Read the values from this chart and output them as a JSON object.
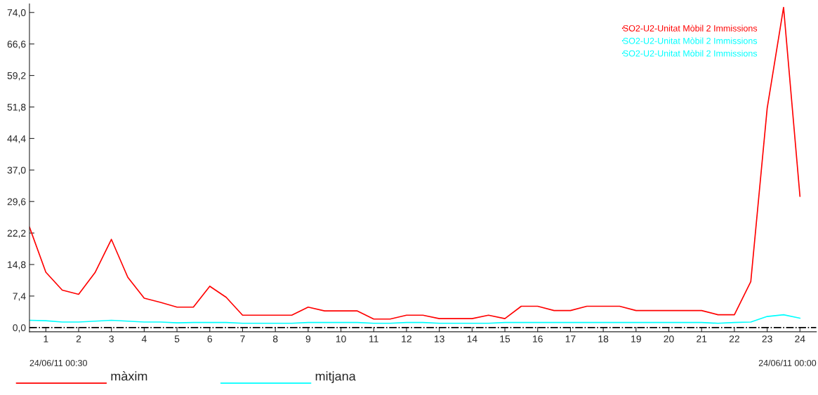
{
  "chart_data": {
    "type": "line",
    "x": [
      0.5,
      1,
      1.5,
      2,
      2.5,
      3,
      3.5,
      4,
      4.5,
      5,
      5.5,
      6,
      6.5,
      7,
      7.5,
      8,
      8.5,
      9,
      9.5,
      10,
      10.5,
      11,
      11.5,
      12,
      12.5,
      13,
      13.5,
      14,
      14.5,
      15,
      15.5,
      16,
      16.5,
      17,
      17.5,
      18,
      18.5,
      19,
      19.5,
      20,
      20.5,
      21,
      21.5,
      22,
      22.5,
      23,
      23.5,
      24
    ],
    "series": [
      {
        "name": "SO2-U2-Unitat Mòbil 2 Immissions",
        "color": "#ff0000",
        "values": [
          23.6,
          13.0,
          8.8,
          7.8,
          12.9,
          20.7,
          11.8,
          6.9,
          5.9,
          4.8,
          4.8,
          9.7,
          7.1,
          2.9,
          2.9,
          2.9,
          2.9,
          4.8,
          3.9,
          3.9,
          3.9,
          2.0,
          2.0,
          2.9,
          2.9,
          2.1,
          2.1,
          2.1,
          2.9,
          2.1,
          5.0,
          5.0,
          4.0,
          4.0,
          5.0,
          5.0,
          5.0,
          4.0,
          4.0,
          4.0,
          4.0,
          4.0,
          3.0,
          3.0,
          10.8,
          51.5,
          75.2,
          30.8
        ]
      },
      {
        "name": "SO2-U2-Unitat Mòbil 2 Immissions",
        "color": "#00ffff",
        "values": [
          1.7,
          1.6,
          1.3,
          1.3,
          1.5,
          1.7,
          1.5,
          1.3,
          1.3,
          1.1,
          1.2,
          1.2,
          1.2,
          1.0,
          1.0,
          1.0,
          1.0,
          1.2,
          1.2,
          1.2,
          1.2,
          1.0,
          1.0,
          1.2,
          1.2,
          1.0,
          1.0,
          1.0,
          1.0,
          1.2,
          1.2,
          1.2,
          1.2,
          1.2,
          1.2,
          1.2,
          1.2,
          1.2,
          1.2,
          1.2,
          1.2,
          1.2,
          1.0,
          1.2,
          1.3,
          2.6,
          3.0,
          2.2
        ]
      },
      {
        "name": "SO2-U2-Unitat Mòbil 2 Immissions",
        "color": "#00ffff",
        "values": [
          null,
          null,
          null,
          null,
          null,
          null,
          null,
          null,
          null,
          null,
          null,
          null,
          null,
          null,
          null,
          null,
          null,
          null,
          null,
          null,
          null,
          null,
          null,
          null,
          null,
          null,
          null,
          null,
          null,
          null,
          null,
          null,
          null,
          null,
          null,
          null,
          null,
          null,
          null,
          null,
          null,
          null,
          null,
          null,
          null,
          null,
          null,
          null
        ]
      }
    ],
    "xlim": [
      0.5,
      24.5
    ],
    "xticks": [
      1,
      2,
      3,
      4,
      5,
      6,
      7,
      8,
      9,
      10,
      11,
      12,
      13,
      14,
      15,
      16,
      17,
      18,
      19,
      20,
      21,
      22,
      23,
      24
    ],
    "ylim": [
      -1.0,
      76.0
    ],
    "yticks": [
      {
        "value": 0.0,
        "label": "0,0"
      },
      {
        "value": 7.4,
        "label": "7,4"
      },
      {
        "value": 14.8,
        "label": "14,8"
      },
      {
        "value": 22.2,
        "label": "22,2"
      },
      {
        "value": 29.6,
        "label": "29,6"
      },
      {
        "value": 37.0,
        "label": "37,0"
      },
      {
        "value": 44.4,
        "label": "44,4"
      },
      {
        "value": 51.8,
        "label": "51,8"
      },
      {
        "value": 59.2,
        "label": "59,2"
      },
      {
        "value": 66.6,
        "label": "66,6"
      },
      {
        "value": 74.0,
        "label": "74,0"
      }
    ],
    "ref_lines": [
      {
        "axis": "y",
        "value": 0.0,
        "color": "#000000",
        "line_style": "dashdot"
      }
    ],
    "annotations": [
      "24/06/11 00:30",
      "24/06/11 00:00",
      "màxim",
      "mitjana"
    ],
    "legend": "top right",
    "grid": false,
    "marker": "none",
    "line_style": "solid"
  }
}
